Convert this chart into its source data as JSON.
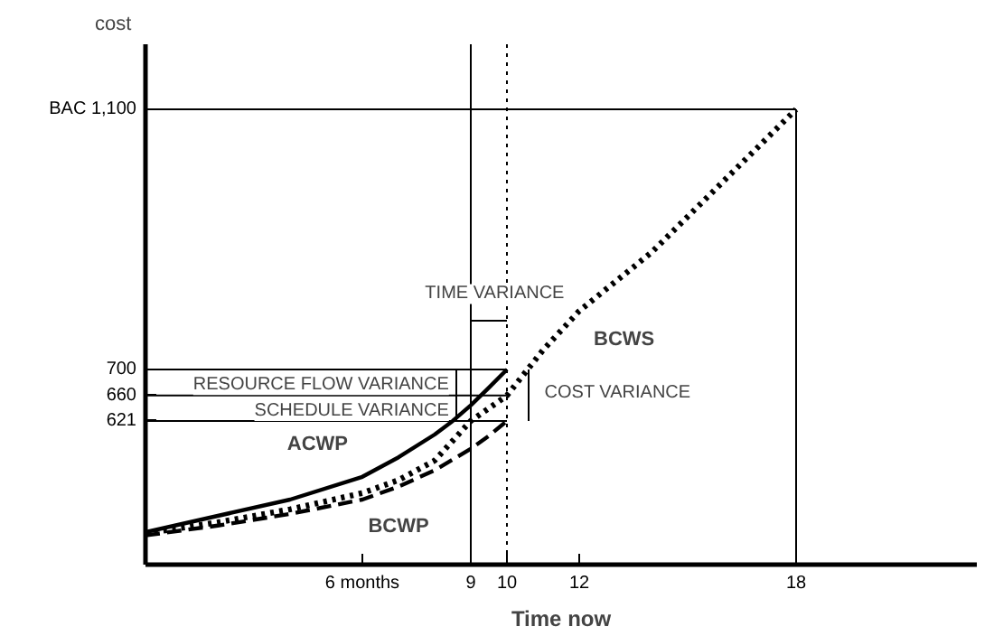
{
  "chart_data": {
    "type": "line",
    "xlabel": "Time now",
    "ylabel": "cost",
    "xlim": [
      0,
      23
    ],
    "ylim": [
      400,
      1200
    ],
    "xticks": [
      {
        "value": 6,
        "label": "6 months"
      },
      9,
      10,
      12,
      18
    ],
    "yticks": [
      621,
      660,
      700,
      {
        "value": 1100,
        "label": "BAC 1,100"
      }
    ],
    "grid": false,
    "ref_lines": [
      {
        "axis": "x",
        "value": 9,
        "color": "#000000",
        "line_style": "solid"
      },
      {
        "axis": "x",
        "value": 10,
        "color": "#000000",
        "line_style": "dotted"
      }
    ],
    "series": [
      {
        "name": "ACWP",
        "color": "#000000",
        "line_style": "solid",
        "x": [
          0,
          2,
          4,
          6,
          7,
          8,
          8.5,
          9,
          9.5,
          10
        ],
        "values": [
          450,
          475,
          500,
          535,
          565,
          600,
          621,
          645,
          672,
          700
        ]
      },
      {
        "name": "BCWP",
        "color": "#000000",
        "line_style": "dashed",
        "x": [
          0,
          2,
          4,
          6,
          7,
          8,
          9,
          9.5,
          10
        ],
        "values": [
          445,
          460,
          478,
          500,
          520,
          545,
          578,
          598,
          621
        ]
      },
      {
        "name": "BCWS",
        "color": "#000000",
        "line_style": "dotted",
        "x": [
          0,
          2,
          4,
          6,
          7,
          8,
          9,
          10,
          10.5,
          11,
          12,
          14,
          16,
          18
        ],
        "values": [
          448,
          465,
          485,
          510,
          530,
          560,
          621,
          660,
          695,
          730,
          790,
          880,
          990,
          1100
        ]
      },
      {
        "color": "#000000",
        "line_style": "solid",
        "x": [
          0,
          10
        ],
        "values": [
          700,
          700
        ]
      },
      {
        "color": "#000000",
        "line_style": "solid",
        "x": [
          0,
          10
        ],
        "values": [
          660,
          660
        ]
      },
      {
        "color": "#000000",
        "line_style": "solid",
        "x": [
          0,
          10
        ],
        "values": [
          621,
          621
        ]
      },
      {
        "color": "#000000",
        "line_style": "solid",
        "x": [
          0,
          18
        ],
        "values": [
          1100,
          1100
        ]
      },
      {
        "color": "#000000",
        "line_style": "solid",
        "x": [
          18,
          18
        ],
        "values": [
          400,
          1100
        ]
      },
      {
        "color": "#000000",
        "line_style": "solid",
        "x": [
          9,
          10
        ],
        "values": [
          775,
          775
        ]
      },
      {
        "color": "#000000",
        "line_style": "solid",
        "x": [
          8.6,
          8.6
        ],
        "values": [
          621,
          700
        ]
      },
      {
        "color": "#000000",
        "line_style": "solid",
        "x": [
          10.6,
          10.6
        ],
        "values": [
          621,
          700
        ]
      }
    ],
    "annotations": [
      "TIME VARIANCE",
      "RESOURCE FLOW VARIANCE",
      "SCHEDULE VARIANCE",
      "COST VARIANCE"
    ]
  }
}
